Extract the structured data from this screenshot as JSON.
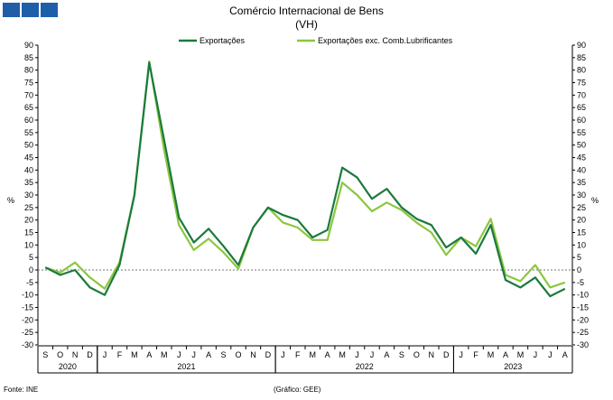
{
  "logo": {
    "color": "#1f5ea8",
    "blocks": 3
  },
  "title": "Comércio Internacional de Bens",
  "subtitle": "(VH)",
  "footer": {
    "source": "Fonte: INE",
    "credit": "(Gráfico: GEE)"
  },
  "chart_data": {
    "type": "line",
    "ylabel": "%",
    "ylim": [
      -30,
      90
    ],
    "ytick_step": 5,
    "yticks_right": true,
    "grid": false,
    "months": [
      "S",
      "O",
      "N",
      "D",
      "J",
      "F",
      "M",
      "A",
      "M",
      "J",
      "J",
      "A",
      "S",
      "O",
      "N",
      "D",
      "J",
      "F",
      "M",
      "A",
      "M",
      "J",
      "J",
      "A",
      "S",
      "O",
      "N",
      "D",
      "J",
      "F",
      "M",
      "A",
      "M",
      "J",
      "J",
      "A"
    ],
    "years": [
      {
        "label": "2020",
        "start": 0,
        "end": 3
      },
      {
        "label": "2021",
        "start": 4,
        "end": 15
      },
      {
        "label": "2022",
        "start": 16,
        "end": 27
      },
      {
        "label": "2023",
        "start": 28,
        "end": 35
      }
    ],
    "series": [
      {
        "name": "Exportações",
        "color": "#1a7a3c",
        "values": [
          1,
          -2,
          0,
          -7,
          -10,
          2,
          30,
          83,
          52,
          21,
          11,
          16.5,
          9.5,
          2,
          17,
          25,
          22,
          20,
          13,
          16,
          41,
          37,
          28.5,
          32.5,
          25,
          20.5,
          18,
          9,
          13,
          6.5,
          18,
          -4,
          -7,
          -3,
          -10.5,
          -7.5
        ]
      },
      {
        "name": "Exportações exc. Comb.Lubrificantes",
        "color": "#8cc63f",
        "values": [
          1,
          -1,
          3,
          -3,
          -7.5,
          3,
          30,
          83.5,
          48,
          18,
          8,
          12.5,
          7,
          0.5,
          17,
          25,
          19,
          17,
          12,
          12,
          35,
          30,
          23.5,
          27,
          24,
          19,
          15,
          6,
          13,
          9.5,
          20.5,
          -2,
          -4.5,
          2,
          -7,
          -5
        ]
      }
    ]
  }
}
